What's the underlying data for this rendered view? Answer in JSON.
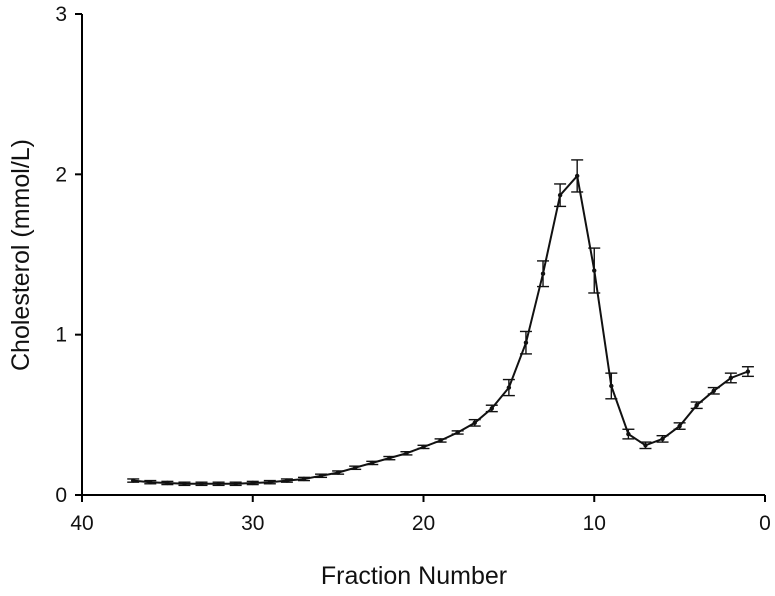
{
  "chart_data": {
    "type": "line",
    "xlabel": "Fraction Number",
    "ylabel": "Cholesterol (mmol/L)",
    "xlim": [
      40,
      0
    ],
    "ylim": [
      0,
      3
    ],
    "x_reversed": true,
    "x_ticks": [
      40,
      30,
      20,
      10,
      0
    ],
    "x_tick_labels": [
      "40",
      "30",
      "20",
      "10",
      "0"
    ],
    "y_ticks": [
      0,
      1,
      2,
      3
    ],
    "y_tick_labels": [
      "0",
      "1",
      "2",
      "3"
    ],
    "grid": false,
    "series": [
      {
        "x": [
          37,
          36,
          35,
          34,
          33,
          32,
          31,
          30,
          29,
          28,
          27,
          26,
          25,
          24,
          23,
          22,
          21,
          20,
          19,
          18,
          17,
          16,
          15,
          14,
          13,
          12,
          11,
          10,
          9,
          8,
          7,
          6,
          5,
          4,
          3,
          2,
          1
        ],
        "y": [
          0.09,
          0.08,
          0.075,
          0.07,
          0.07,
          0.07,
          0.07,
          0.075,
          0.08,
          0.09,
          0.1,
          0.12,
          0.14,
          0.17,
          0.2,
          0.23,
          0.26,
          0.3,
          0.34,
          0.39,
          0.45,
          0.54,
          0.67,
          0.95,
          1.38,
          1.87,
          1.99,
          1.4,
          0.68,
          0.38,
          0.31,
          0.35,
          0.43,
          0.56,
          0.65,
          0.73,
          0.77
        ],
        "error": [
          0.01,
          0.01,
          0.01,
          0.01,
          0.01,
          0.01,
          0.01,
          0.01,
          0.01,
          0.01,
          0.01,
          0.01,
          0.01,
          0.01,
          0.01,
          0.01,
          0.01,
          0.01,
          0.01,
          0.01,
          0.02,
          0.02,
          0.05,
          0.07,
          0.08,
          0.07,
          0.1,
          0.14,
          0.08,
          0.03,
          0.02,
          0.02,
          0.02,
          0.02,
          0.02,
          0.03,
          0.03
        ]
      }
    ]
  }
}
